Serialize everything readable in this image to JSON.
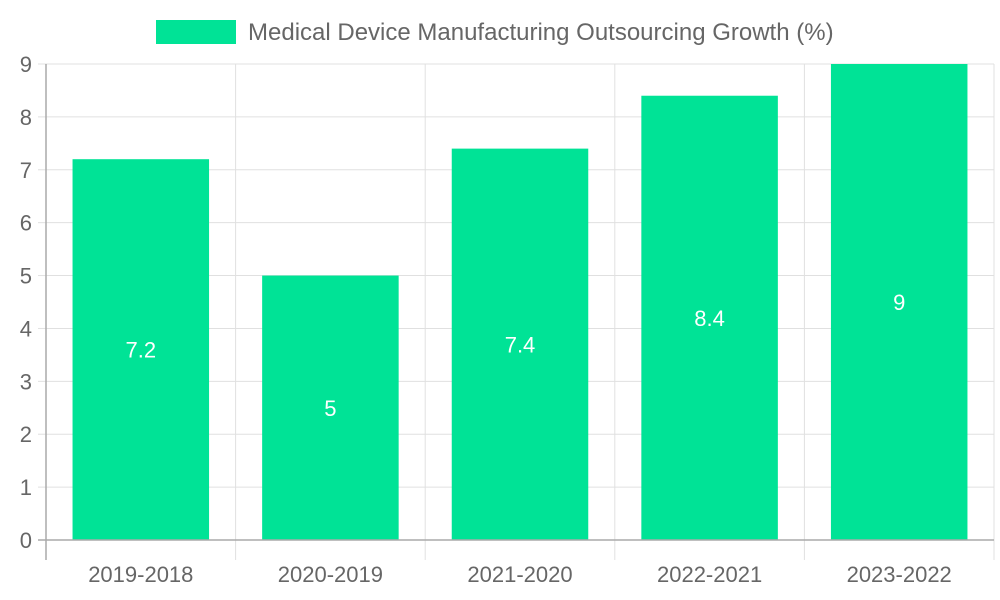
{
  "chart_data": {
    "type": "bar",
    "title": "",
    "xlabel": "",
    "ylabel": "",
    "categories": [
      "2019-2018",
      "2020-2019",
      "2021-2020",
      "2022-2021",
      "2023-2022"
    ],
    "series": [
      {
        "name": "Medical Device Manufacturing Outsourcing Growth (%)",
        "values": [
          7.2,
          5,
          7.4,
          8.4,
          9
        ],
        "color": "#00e396"
      }
    ],
    "ylim": [
      0,
      9
    ],
    "yticks": [
      "0",
      "1",
      "2",
      "3",
      "4",
      "5",
      "6",
      "7",
      "8",
      "9"
    ],
    "data_labels": [
      "7.2",
      "5",
      "7.4",
      "8.4",
      "9"
    ],
    "grid": true,
    "legend_position": "top-center"
  }
}
